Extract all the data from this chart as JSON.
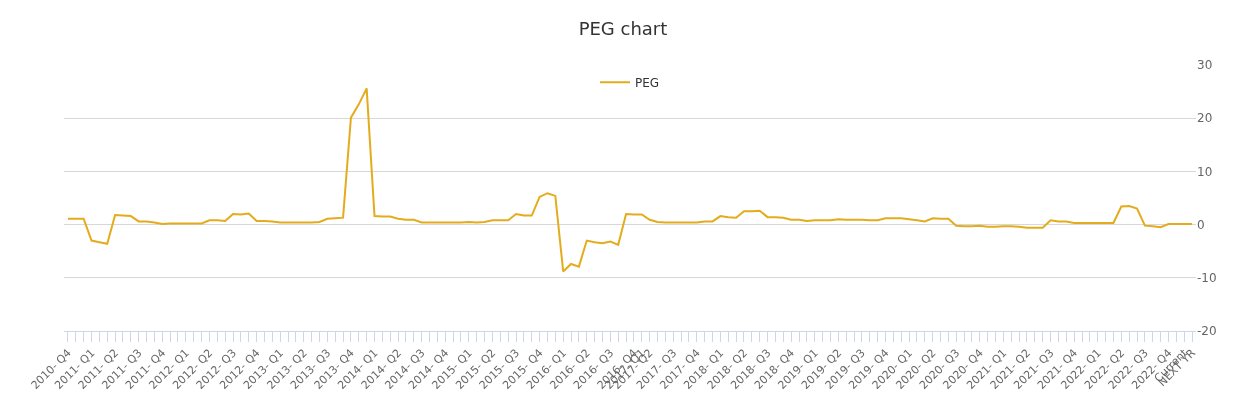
{
  "chart_data": {
    "type": "line",
    "title": "PEG chart",
    "categories": [
      "2010- Q4",
      null,
      null,
      "2011- Q1",
      null,
      null,
      "2011- Q2",
      null,
      null,
      "2011- Q3",
      null,
      null,
      "2011- Q4",
      null,
      null,
      "2012- Q1",
      null,
      null,
      "2012- Q2",
      null,
      null,
      "2012- Q3",
      null,
      null,
      "2012- Q4",
      null,
      null,
      "2013- Q1",
      null,
      null,
      "2013- Q2",
      null,
      null,
      "2013- Q3",
      null,
      null,
      "2013- Q4",
      null,
      null,
      "2014- Q1",
      null,
      null,
      "2014- Q2",
      null,
      null,
      "2014- Q3",
      null,
      null,
      "2014- Q4",
      null,
      null,
      "2015- Q1",
      null,
      null,
      "2015- Q2",
      null,
      null,
      "2015- Q3",
      null,
      null,
      "2015- Q4",
      null,
      null,
      "2016- Q1",
      null,
      null,
      "2016- Q2",
      null,
      null,
      "2016- Q3",
      null,
      null,
      "2016- Q4",
      "2017- Q1",
      "2017- Q2",
      null,
      null,
      "2017- Q3",
      null,
      null,
      "2017- Q4",
      null,
      null,
      "2018- Q1",
      null,
      null,
      "2018- Q2",
      null,
      null,
      "2018- Q3",
      null,
      null,
      "2018- Q4",
      null,
      null,
      "2019- Q1",
      null,
      null,
      "2019- Q2",
      null,
      null,
      "2019- Q3",
      null,
      null,
      "2019- Q4",
      null,
      null,
      "2020- Q1",
      null,
      null,
      "2020- Q2",
      null,
      null,
      "2020- Q3",
      null,
      null,
      "2020- Q4",
      null,
      null,
      "2021- Q1",
      null,
      null,
      "2021- Q2",
      null,
      null,
      "2021- Q3",
      null,
      null,
      "2021- Q4",
      null,
      null,
      "2022- Q1",
      null,
      null,
      "2022- Q2",
      null,
      null,
      "2022- Q3",
      null,
      null,
      "2022- Q4",
      null,
      "Current",
      "NEXT YR"
    ],
    "series": [
      {
        "name": "PEG",
        "color": "#e4ac1c",
        "values": [
          1.1,
          1.1,
          1.1,
          -3.0,
          -3.3,
          -3.6,
          1.8,
          1.7,
          1.6,
          0.6,
          0.6,
          0.4,
          0.1,
          0.2,
          0.2,
          0.2,
          0.2,
          0.2,
          0.8,
          0.8,
          0.7,
          2.0,
          1.9,
          2.1,
          0.7,
          0.7,
          0.6,
          0.4,
          0.4,
          0.4,
          0.4,
          0.4,
          0.5,
          1.1,
          1.2,
          1.3,
          20.1,
          22.6,
          25.6,
          1.6,
          1.5,
          1.5,
          1.1,
          0.9,
          0.9,
          0.4,
          0.4,
          0.4,
          0.4,
          0.4,
          0.4,
          0.5,
          0.4,
          0.5,
          0.8,
          0.8,
          0.8,
          2.0,
          1.7,
          1.7,
          5.2,
          5.9,
          5.4,
          -8.8,
          -7.4,
          -7.9,
          -3.0,
          -3.3,
          -3.5,
          -3.2,
          -3.8,
          2.0,
          1.9,
          1.9,
          0.9,
          0.5,
          0.4,
          0.4,
          0.4,
          0.4,
          0.4,
          0.6,
          0.6,
          1.6,
          1.4,
          1.3,
          2.5,
          2.5,
          2.6,
          1.4,
          1.4,
          1.3,
          0.9,
          0.9,
          0.7,
          0.8,
          0.8,
          0.8,
          1.0,
          0.9,
          0.9,
          0.9,
          0.8,
          0.8,
          1.2,
          1.2,
          1.2,
          1.0,
          0.8,
          0.6,
          1.2,
          1.1,
          1.1,
          -0.2,
          -0.3,
          -0.3,
          -0.2,
          -0.4,
          -0.4,
          -0.3,
          -0.3,
          -0.4,
          -0.6,
          -0.6,
          -0.6,
          0.8,
          0.6,
          0.6,
          0.3,
          0.3,
          0.3,
          0.3,
          0.3,
          0.3,
          3.4,
          3.5,
          3.0,
          -0.2,
          -0.3,
          -0.5,
          0.1,
          0.1,
          0.1,
          0.1
        ]
      }
    ],
    "ylim": [
      -20,
      30
    ],
    "yticks": [
      -20,
      -10,
      0,
      10,
      20,
      30
    ],
    "grid": "y",
    "legend": "top",
    "marker": "none",
    "line_style": "solid"
  }
}
